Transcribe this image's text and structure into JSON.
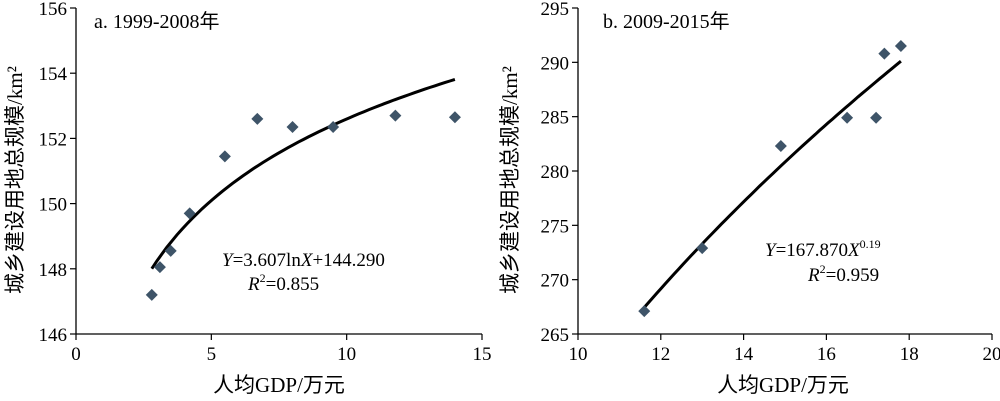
{
  "chart_data": [
    {
      "type": "scatter",
      "title": "a. 1999-2008年",
      "xlabel": "人均GDP/万元",
      "ylabel": "城乡建设用地总规模/km²",
      "xlim": [
        0,
        15
      ],
      "ylim": [
        146,
        156
      ],
      "xticks": [
        0,
        5,
        10,
        15
      ],
      "yticks": [
        146,
        148,
        150,
        152,
        154,
        156
      ],
      "grid": false,
      "points": [
        {
          "x": 2.8,
          "y": 147.2
        },
        {
          "x": 3.1,
          "y": 148.05
        },
        {
          "x": 3.5,
          "y": 148.55
        },
        {
          "x": 4.2,
          "y": 149.7
        },
        {
          "x": 5.5,
          "y": 151.45
        },
        {
          "x": 6.7,
          "y": 152.6
        },
        {
          "x": 8.0,
          "y": 152.35
        },
        {
          "x": 9.5,
          "y": 152.35
        },
        {
          "x": 11.8,
          "y": 152.7
        },
        {
          "x": 14.0,
          "y": 152.65
        }
      ],
      "trendline": {
        "model": "log",
        "a": 3.607,
        "b": 144.29,
        "xrange": [
          2.8,
          14.0
        ]
      },
      "equation": {
        "lhs": "Y",
        "rhs": "=3.607ln",
        "var": "X",
        "tail": "+144.290"
      },
      "r2": {
        "sym": "R",
        "sup": "2",
        "val": "=0.855"
      }
    },
    {
      "type": "scatter",
      "title": "b. 2009-2015年",
      "xlabel": "人均GDP/万元",
      "ylabel": "城乡建设用地总规模/km²",
      "xlim": [
        10,
        20
      ],
      "ylim": [
        265,
        295
      ],
      "xticks": [
        10,
        12,
        14,
        16,
        18,
        20
      ],
      "yticks": [
        265,
        270,
        275,
        280,
        285,
        290,
        295
      ],
      "grid": false,
      "points": [
        {
          "x": 11.6,
          "y": 267.1
        },
        {
          "x": 13.0,
          "y": 272.9
        },
        {
          "x": 14.9,
          "y": 282.3
        },
        {
          "x": 16.5,
          "y": 284.9
        },
        {
          "x": 17.2,
          "y": 284.9
        },
        {
          "x": 17.4,
          "y": 290.8
        },
        {
          "x": 17.8,
          "y": 291.5
        }
      ],
      "trendline": {
        "model": "power",
        "a": 167.87,
        "b": 0.19,
        "xrange": [
          11.6,
          17.8
        ]
      },
      "equation": {
        "lhs": "Y",
        "rhs": "=167.870",
        "var": "X",
        "exp": "0.19"
      },
      "r2": {
        "sym": "R",
        "sup": "2",
        "val": "=0.959"
      }
    }
  ],
  "style": {
    "marker_color": "#3e5468",
    "line_color": "#000000"
  }
}
